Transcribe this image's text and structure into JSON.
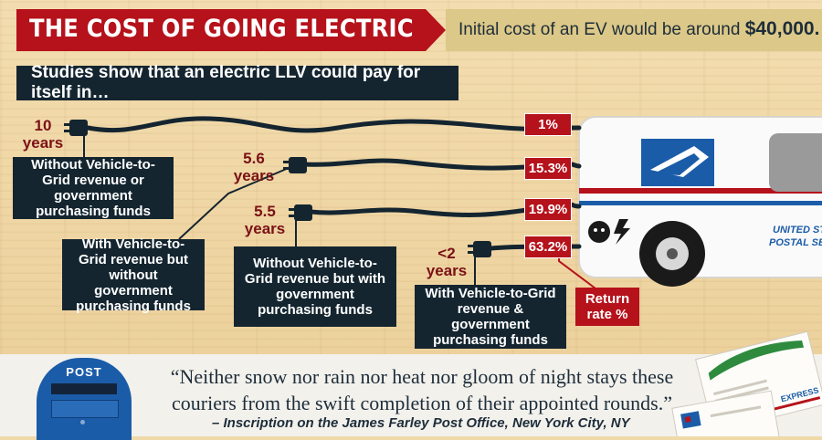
{
  "header": {
    "title": "THE COST OF GOING ELECTRIC",
    "cost_prefix": "Initial cost of an EV would be around ",
    "cost_value": "$40,000."
  },
  "studies_banner": "Studies show that an electric LLV could pay for itself in…",
  "scenarios": [
    {
      "years_num": "10",
      "years_unit": "years",
      "description": "Without Vehicle-to-Grid revenue or government purchasing funds",
      "return_rate": "1%"
    },
    {
      "years_num": "5.6",
      "years_unit": "years",
      "description": "With Vehicle-to-Grid revenue but without government purchasing funds",
      "return_rate": "15.3%"
    },
    {
      "years_num": "5.5",
      "years_unit": "years",
      "description": "Without Vehicle-to-Grid revenue but with government purchasing funds",
      "return_rate": "19.9%"
    },
    {
      "years_num": "<2",
      "years_unit": "years",
      "description": "With Vehicle-to-Grid revenue & government purchasing funds",
      "return_rate": "63.2%"
    }
  ],
  "return_label": "Return rate %",
  "truck": {
    "side_text_1": "UNITED ST",
    "side_text_2": "POSTAL SE"
  },
  "mailbox_label": "POST",
  "quote": {
    "text": "“Neither snow nor rain nor heat nor gloom of night stays these couriers from the swift completion of their appointed rounds.”",
    "attribution": "– Inscription on the James Farley Post Office, New York City, NY"
  },
  "envelope_label": "EXPRESS",
  "colors": {
    "red": "#b5121b",
    "navy": "#142530",
    "gold": "#dcc888",
    "usps_blue": "#1b5ca8"
  }
}
